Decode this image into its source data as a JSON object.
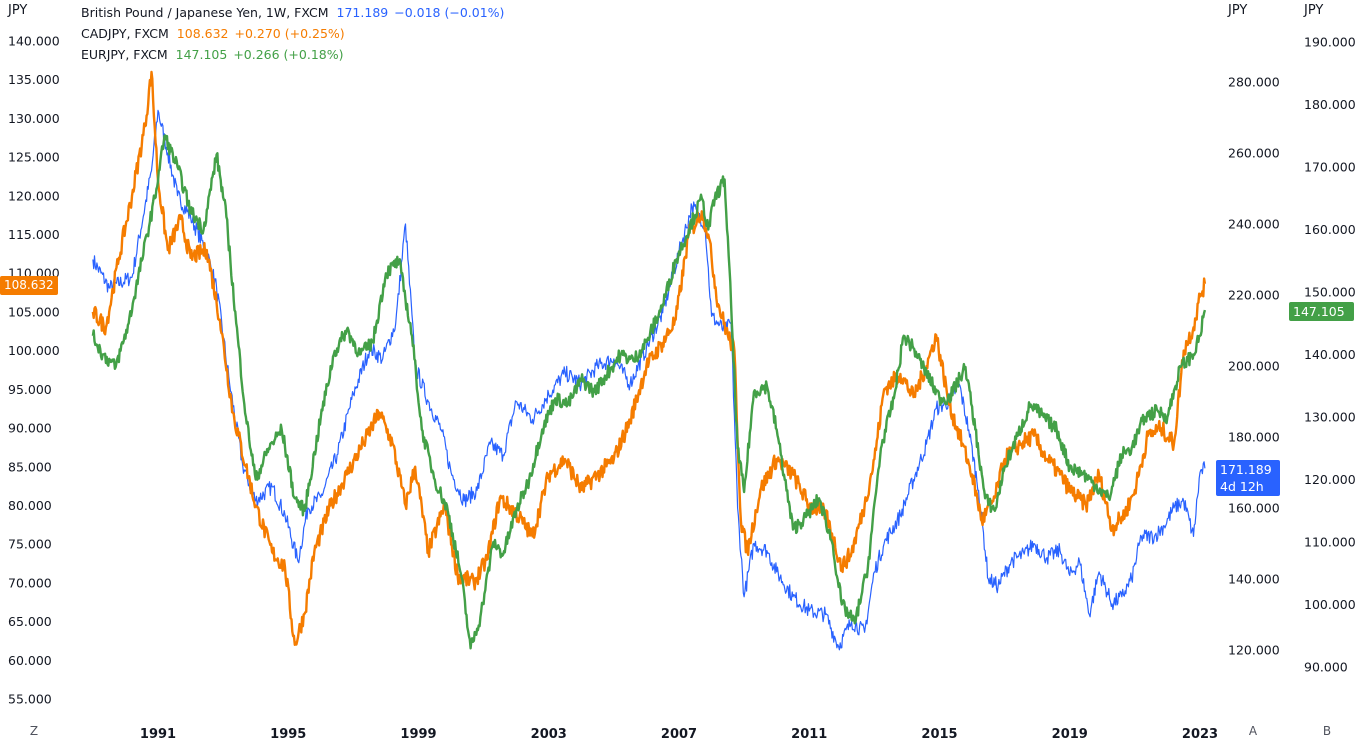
{
  "legend": [
    {
      "name": "British Pound / Japanese Yen, 1W, FXCM",
      "value": "171.189",
      "change": "−0.018 (−0.01%)",
      "color": "#2962ff"
    },
    {
      "name": "CADJPY, FXCM",
      "value": "108.632",
      "change": "+0.270 (+0.25%)",
      "color": "#f57c00"
    },
    {
      "name": "EURJPY, FXCM",
      "value": "147.105",
      "change": "+0.266 (+0.18%)",
      "color": "#43a047"
    }
  ],
  "axis_units": {
    "left": "JPY",
    "right_a": "JPY",
    "right_b": "JPY"
  },
  "corner_labels": {
    "left": "Z",
    "right_a": "A",
    "right_b": "B"
  },
  "price_tags": {
    "cad": "108.632",
    "eur": "147.105",
    "gbp_price": "171.189",
    "gbp_countdown": "4d 12h"
  },
  "chart_data": {
    "type": "line",
    "title": "",
    "x_ticks": [
      "1991",
      "1995",
      "1999",
      "2003",
      "2007",
      "2011",
      "2015",
      "2019",
      "2023"
    ],
    "axes": {
      "left": {
        "id": "Z",
        "ticks": [
          "140.000",
          "135.000",
          "130.000",
          "125.000",
          "120.000",
          "115.000",
          "110.000",
          "105.000",
          "100.000",
          "95.000",
          "90.000",
          "85.000",
          "80.000",
          "75.000",
          "70.000",
          "65.000",
          "60.000",
          "55.000"
        ]
      },
      "right_a": {
        "id": "A",
        "ticks": [
          "280.000",
          "260.000",
          "240.000",
          "220.000",
          "200.000",
          "180.000",
          "160.000",
          "140.000",
          "120.000"
        ]
      },
      "right_b": {
        "id": "B",
        "ticks": [
          "190.000",
          "180.000",
          "170.000",
          "160.000",
          "150.000",
          "140.000",
          "130.000",
          "120.000",
          "110.000",
          "100.000",
          "90.000"
        ]
      }
    },
    "series": [
      {
        "name": "British Pound / Japanese Yen, 1W, FXCM",
        "axis": "A",
        "color": "#2962ff",
        "width": 1.2,
        "points": [
          [
            1989.0,
            230
          ],
          [
            1989.5,
            222
          ],
          [
            1990.2,
            225
          ],
          [
            1990.8,
            255
          ],
          [
            1991.0,
            272
          ],
          [
            1991.3,
            260
          ],
          [
            1991.6,
            248
          ],
          [
            1992.0,
            242
          ],
          [
            1992.5,
            232
          ],
          [
            1992.8,
            222
          ],
          [
            1993.2,
            195
          ],
          [
            1993.6,
            172
          ],
          [
            1994.0,
            162
          ],
          [
            1994.5,
            166
          ],
          [
            1994.9,
            158
          ],
          [
            1995.3,
            145
          ],
          [
            1995.6,
            160
          ],
          [
            1996.0,
            163
          ],
          [
            1996.5,
            175
          ],
          [
            1997.0,
            192
          ],
          [
            1997.5,
            205
          ],
          [
            1997.9,
            202
          ],
          [
            1998.3,
            212
          ],
          [
            1998.6,
            240
          ],
          [
            1998.9,
            200
          ],
          [
            1999.3,
            190
          ],
          [
            1999.7,
            182
          ],
          [
            2000.0,
            170
          ],
          [
            2000.4,
            162
          ],
          [
            2000.8,
            165
          ],
          [
            2001.2,
            178
          ],
          [
            2001.6,
            175
          ],
          [
            2002.0,
            190
          ],
          [
            2002.5,
            185
          ],
          [
            2003.0,
            192
          ],
          [
            2003.5,
            198
          ],
          [
            2004.0,
            195
          ],
          [
            2004.5,
            200
          ],
          [
            2005.0,
            202
          ],
          [
            2005.5,
            195
          ],
          [
            2006.0,
            205
          ],
          [
            2006.5,
            215
          ],
          [
            2007.0,
            232
          ],
          [
            2007.4,
            245
          ],
          [
            2007.8,
            240
          ],
          [
            2008.0,
            214
          ],
          [
            2008.4,
            210
          ],
          [
            2008.6,
            212
          ],
          [
            2008.8,
            160
          ],
          [
            2009.0,
            135
          ],
          [
            2009.3,
            150
          ],
          [
            2009.7,
            148
          ],
          [
            2010.0,
            142
          ],
          [
            2010.5,
            135
          ],
          [
            2011.0,
            131
          ],
          [
            2011.5,
            130
          ],
          [
            2011.9,
            121
          ],
          [
            2012.3,
            128
          ],
          [
            2012.7,
            125
          ],
          [
            2013.0,
            142
          ],
          [
            2013.3,
            150
          ],
          [
            2013.8,
            158
          ],
          [
            2014.2,
            168
          ],
          [
            2014.6,
            178
          ],
          [
            2014.9,
            188
          ],
          [
            2015.3,
            190
          ],
          [
            2015.6,
            195
          ],
          [
            2015.9,
            182
          ],
          [
            2016.2,
            165
          ],
          [
            2016.5,
            140
          ],
          [
            2016.8,
            138
          ],
          [
            2017.2,
            145
          ],
          [
            2017.6,
            147
          ],
          [
            2017.9,
            150
          ],
          [
            2018.3,
            146
          ],
          [
            2018.7,
            148
          ],
          [
            2019.0,
            141
          ],
          [
            2019.3,
            145
          ],
          [
            2019.6,
            130
          ],
          [
            2019.9,
            142
          ],
          [
            2020.3,
            133
          ],
          [
            2020.6,
            135
          ],
          [
            2020.9,
            140
          ],
          [
            2021.2,
            152
          ],
          [
            2021.6,
            152
          ],
          [
            2021.9,
            155
          ],
          [
            2022.2,
            160
          ],
          [
            2022.5,
            162
          ],
          [
            2022.8,
            152
          ],
          [
            2023.0,
            170
          ],
          [
            2023.15,
            171.189
          ]
        ]
      },
      {
        "name": "CADJPY, FXCM",
        "axis": "Z",
        "color": "#f57c00",
        "width": 2.4,
        "points": [
          [
            1989.0,
            105
          ],
          [
            1989.4,
            103
          ],
          [
            1989.8,
            112
          ],
          [
            1990.2,
            120
          ],
          [
            1990.6,
            129
          ],
          [
            1990.8,
            136
          ],
          [
            1991.0,
            122
          ],
          [
            1991.3,
            113
          ],
          [
            1991.7,
            117
          ],
          [
            1992.0,
            112
          ],
          [
            1992.5,
            113
          ],
          [
            1992.9,
            104
          ],
          [
            1993.3,
            92
          ],
          [
            1993.7,
            85
          ],
          [
            1994.0,
            80
          ],
          [
            1994.5,
            74
          ],
          [
            1994.9,
            72
          ],
          [
            1995.2,
            62
          ],
          [
            1995.5,
            66
          ],
          [
            1995.8,
            74
          ],
          [
            1996.3,
            80
          ],
          [
            1996.8,
            84
          ],
          [
            1997.3,
            88
          ],
          [
            1997.8,
            92
          ],
          [
            1998.2,
            88
          ],
          [
            1998.6,
            80
          ],
          [
            1998.9,
            85
          ],
          [
            1999.3,
            74
          ],
          [
            1999.8,
            80
          ],
          [
            2000.2,
            71
          ],
          [
            2000.7,
            70
          ],
          [
            2001.1,
            73
          ],
          [
            2001.5,
            81
          ],
          [
            2002.0,
            79
          ],
          [
            2002.5,
            76
          ],
          [
            2003.0,
            84
          ],
          [
            2003.5,
            86
          ],
          [
            2004.0,
            82
          ],
          [
            2004.5,
            84
          ],
          [
            2005.0,
            86
          ],
          [
            2005.5,
            91
          ],
          [
            2006.0,
            98
          ],
          [
            2006.5,
            101
          ],
          [
            2006.9,
            104
          ],
          [
            2007.3,
            115
          ],
          [
            2007.7,
            118
          ],
          [
            2007.9,
            115
          ],
          [
            2008.2,
            106
          ],
          [
            2008.5,
            102
          ],
          [
            2008.7,
            100
          ],
          [
            2008.9,
            78
          ],
          [
            2009.1,
            74
          ],
          [
            2009.5,
            82
          ],
          [
            2010.0,
            86
          ],
          [
            2010.5,
            84
          ],
          [
            2011.0,
            80
          ],
          [
            2011.5,
            79
          ],
          [
            2012.0,
            72
          ],
          [
            2012.3,
            74
          ],
          [
            2012.7,
            80
          ],
          [
            2013.0,
            86
          ],
          [
            2013.3,
            95
          ],
          [
            2013.8,
            97
          ],
          [
            2014.2,
            94
          ],
          [
            2014.6,
            98
          ],
          [
            2014.9,
            102
          ],
          [
            2015.3,
            93
          ],
          [
            2015.7,
            88
          ],
          [
            2016.0,
            84
          ],
          [
            2016.3,
            78
          ],
          [
            2016.7,
            81
          ],
          [
            2017.0,
            86
          ],
          [
            2017.5,
            88
          ],
          [
            2017.9,
            89
          ],
          [
            2018.3,
            86
          ],
          [
            2018.7,
            84
          ],
          [
            2019.0,
            82
          ],
          [
            2019.5,
            80
          ],
          [
            2019.9,
            84
          ],
          [
            2020.3,
            77
          ],
          [
            2020.7,
            79
          ],
          [
            2021.0,
            82
          ],
          [
            2021.4,
            89
          ],
          [
            2021.8,
            90
          ],
          [
            2022.2,
            88
          ],
          [
            2022.5,
            100
          ],
          [
            2022.8,
            103
          ],
          [
            2023.0,
            107
          ],
          [
            2023.15,
            108.632
          ]
        ]
      },
      {
        "name": "EURJPY, FXCM",
        "axis": "B",
        "color": "#43a047",
        "width": 2.4,
        "points": [
          [
            1989.0,
            143
          ],
          [
            1989.3,
            140
          ],
          [
            1989.7,
            138
          ],
          [
            1990.1,
            145
          ],
          [
            1990.5,
            155
          ],
          [
            1990.9,
            165
          ],
          [
            1991.2,
            175
          ],
          [
            1991.6,
            170
          ],
          [
            1992.0,
            163
          ],
          [
            1992.4,
            160
          ],
          [
            1992.8,
            172
          ],
          [
            1993.1,
            162
          ],
          [
            1993.4,
            145
          ],
          [
            1993.7,
            130
          ],
          [
            1994.0,
            120
          ],
          [
            1994.4,
            125
          ],
          [
            1994.8,
            128
          ],
          [
            1995.2,
            117
          ],
          [
            1995.5,
            115
          ],
          [
            1996.0,
            130
          ],
          [
            1996.4,
            140
          ],
          [
            1996.8,
            144
          ],
          [
            1997.2,
            140
          ],
          [
            1997.6,
            142
          ],
          [
            1998.0,
            153
          ],
          [
            1998.4,
            155
          ],
          [
            1998.8,
            143
          ],
          [
            1999.1,
            128
          ],
          [
            1999.5,
            120
          ],
          [
            1999.9,
            115
          ],
          [
            2000.3,
            105
          ],
          [
            2000.6,
            93
          ],
          [
            2000.9,
            98
          ],
          [
            2001.3,
            110
          ],
          [
            2001.6,
            108
          ],
          [
            2002.0,
            115
          ],
          [
            2002.4,
            120
          ],
          [
            2002.8,
            128
          ],
          [
            2003.2,
            133
          ],
          [
            2003.6,
            132
          ],
          [
            2004.0,
            136
          ],
          [
            2004.4,
            134
          ],
          [
            2004.8,
            137
          ],
          [
            2005.2,
            140
          ],
          [
            2005.6,
            139
          ],
          [
            2006.0,
            142
          ],
          [
            2006.5,
            148
          ],
          [
            2006.9,
            155
          ],
          [
            2007.3,
            160
          ],
          [
            2007.7,
            165
          ],
          [
            2007.9,
            160
          ],
          [
            2008.1,
            165
          ],
          [
            2008.4,
            168
          ],
          [
            2008.6,
            148
          ],
          [
            2008.8,
            125
          ],
          [
            2009.0,
            118
          ],
          [
            2009.3,
            134
          ],
          [
            2009.7,
            135
          ],
          [
            2010.0,
            128
          ],
          [
            2010.5,
            112
          ],
          [
            2010.9,
            114
          ],
          [
            2011.3,
            117
          ],
          [
            2011.7,
            110
          ],
          [
            2012.0,
            100
          ],
          [
            2012.4,
            97
          ],
          [
            2012.8,
            106
          ],
          [
            2013.2,
            125
          ],
          [
            2013.6,
            133
          ],
          [
            2013.9,
            143
          ],
          [
            2014.2,
            141
          ],
          [
            2014.6,
            137
          ],
          [
            2015.0,
            133
          ],
          [
            2015.3,
            133
          ],
          [
            2015.8,
            138
          ],
          [
            2016.1,
            128
          ],
          [
            2016.4,
            117
          ],
          [
            2016.7,
            115
          ],
          [
            2017.0,
            122
          ],
          [
            2017.4,
            127
          ],
          [
            2017.8,
            132
          ],
          [
            2018.2,
            130
          ],
          [
            2018.6,
            128
          ],
          [
            2019.0,
            122
          ],
          [
            2019.4,
            121
          ],
          [
            2019.8,
            119
          ],
          [
            2020.2,
            117
          ],
          [
            2020.6,
            124
          ],
          [
            2020.9,
            125
          ],
          [
            2021.3,
            130
          ],
          [
            2021.7,
            131
          ],
          [
            2022.0,
            130
          ],
          [
            2022.4,
            138
          ],
          [
            2022.8,
            140
          ],
          [
            2023.0,
            143
          ],
          [
            2023.15,
            147.105
          ]
        ]
      }
    ]
  }
}
